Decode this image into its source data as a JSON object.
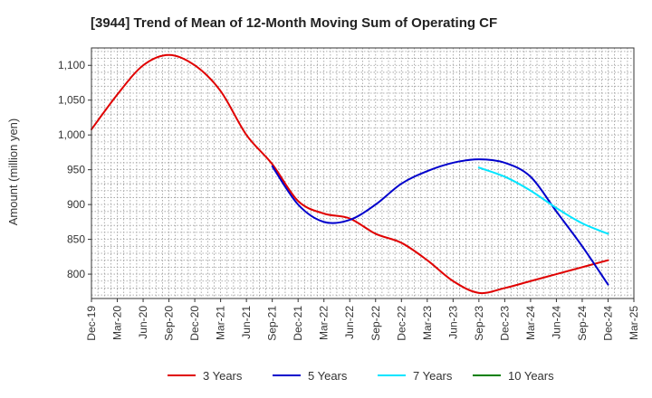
{
  "chart_data": {
    "type": "line",
    "title": "[3944]  Trend of Mean of 12-Month Moving Sum of Operating CF",
    "xlabel": "",
    "ylabel": "Amount (million yen)",
    "ylim": [
      765,
      1125
    ],
    "yticks": [
      800,
      850,
      900,
      950,
      1000,
      1050,
      1100
    ],
    "ytick_labels": [
      "800",
      "850",
      "900",
      "950",
      "1,000",
      "1,050",
      "1,100"
    ],
    "categories": [
      "Dec-19",
      "Mar-20",
      "Jun-20",
      "Sep-20",
      "Dec-20",
      "Mar-21",
      "Jun-21",
      "Sep-21",
      "Dec-21",
      "Mar-22",
      "Jun-22",
      "Sep-22",
      "Dec-22",
      "Mar-23",
      "Jun-23",
      "Sep-23",
      "Dec-23",
      "Mar-24",
      "Jun-24",
      "Sep-24",
      "Dec-24",
      "Mar-25"
    ],
    "grid": true,
    "legend_position": "bottom",
    "series": [
      {
        "name": "3 Years",
        "color": "#e00000",
        "values": [
          1008,
          1058,
          1100,
          1115,
          1100,
          1063,
          1000,
          958,
          905,
          887,
          880,
          858,
          845,
          820,
          790,
          773,
          780,
          790,
          800,
          810,
          820,
          null
        ]
      },
      {
        "name": "5 Years",
        "color": "#0000cc",
        "values": [
          null,
          null,
          null,
          null,
          null,
          null,
          null,
          955,
          900,
          875,
          878,
          900,
          930,
          948,
          960,
          965,
          960,
          940,
          890,
          840,
          785,
          null
        ]
      },
      {
        "name": "7 Years",
        "color": "#00e5ff",
        "values": [
          null,
          null,
          null,
          null,
          null,
          null,
          null,
          null,
          null,
          null,
          null,
          null,
          null,
          null,
          null,
          953,
          940,
          920,
          895,
          873,
          858,
          null
        ]
      },
      {
        "name": "10 Years",
        "color": "#008000",
        "values": [
          null,
          null,
          null,
          null,
          null,
          null,
          null,
          null,
          null,
          null,
          null,
          null,
          null,
          null,
          null,
          null,
          null,
          null,
          null,
          null,
          null,
          null
        ]
      }
    ]
  }
}
